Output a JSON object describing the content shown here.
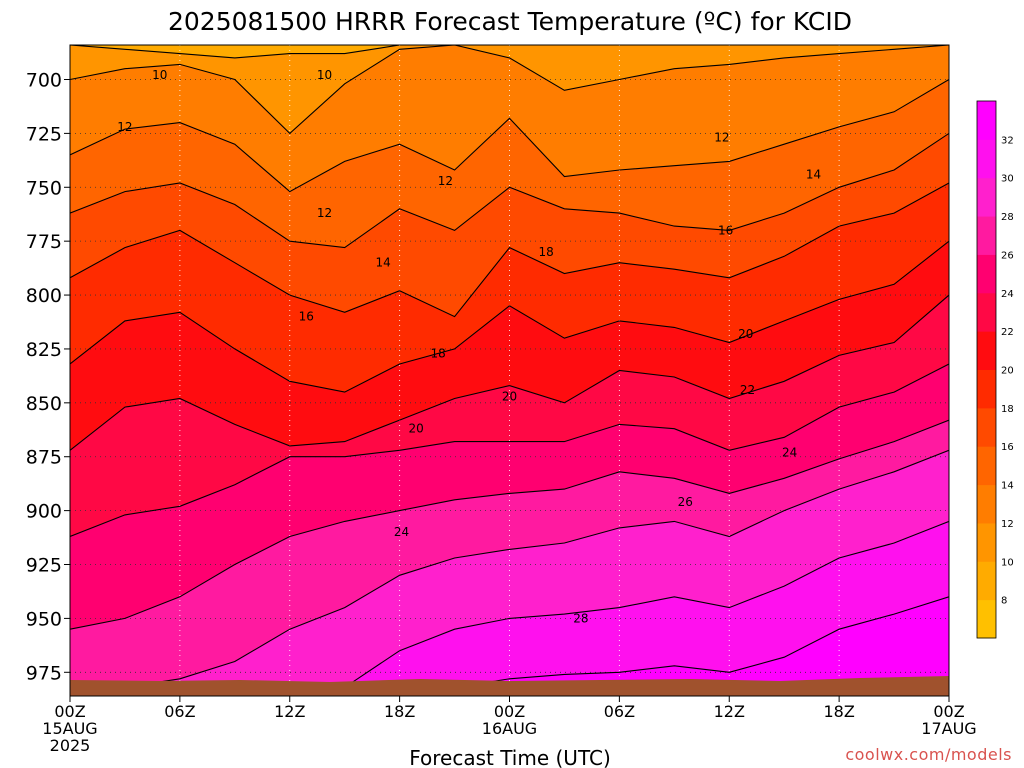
{
  "chart_data": {
    "type": "heatmap",
    "title": "2025081500 HRRR Forecast Temperature (ºC) for KCID",
    "xlabel": "Forecast Time (UTC)",
    "ylabel": "",
    "x_ticks": [
      {
        "hour": 0,
        "lines": [
          "00Z",
          "15AUG",
          "2025"
        ]
      },
      {
        "hour": 6,
        "lines": [
          "06Z"
        ]
      },
      {
        "hour": 12,
        "lines": [
          "12Z"
        ]
      },
      {
        "hour": 18,
        "lines": [
          "18Z"
        ]
      },
      {
        "hour": 24,
        "lines": [
          "00Z",
          "16AUG"
        ]
      },
      {
        "hour": 30,
        "lines": [
          "06Z"
        ]
      },
      {
        "hour": 36,
        "lines": [
          "12Z"
        ]
      },
      {
        "hour": 42,
        "lines": [
          "18Z"
        ]
      },
      {
        "hour": 48,
        "lines": [
          "00Z",
          "17AUG"
        ]
      }
    ],
    "xlim": [
      0,
      48
    ],
    "y_ticks": [
      700,
      725,
      750,
      775,
      800,
      825,
      850,
      875,
      900,
      925,
      950,
      975
    ],
    "ylim": [
      684,
      986
    ],
    "y_scale": "inverted pressure (hPa)",
    "colorbar": {
      "ticks": [
        8,
        10,
        12,
        14,
        16,
        18,
        20,
        22,
        24,
        26,
        28,
        30,
        32
      ],
      "range": [
        6,
        34
      ],
      "colors": [
        "#ffc000",
        "#ffab00",
        "#ff9500",
        "#ff7d00",
        "#ff6500",
        "#ff4a00",
        "#ff2b00",
        "#ff0c10",
        "#ff0845",
        "#ff0070",
        "#ff1aa0",
        "#ff20cd",
        "#ff10ee",
        "#ff00ff"
      ]
    },
    "contour_interval": 2,
    "hours": [
      0,
      3,
      6,
      9,
      12,
      15,
      18,
      21,
      24,
      27,
      30,
      33,
      36,
      39,
      42,
      45,
      48
    ],
    "contour_levels": [
      {
        "value": 10,
        "pressure": [
          684,
          686,
          688,
          690,
          688,
          688,
          684,
          684,
          684,
          684,
          684,
          684,
          684,
          684,
          684,
          684,
          684
        ]
      },
      {
        "value": 12,
        "pressure": [
          700,
          695,
          693,
          700,
          725,
          702,
          686,
          684,
          690,
          705,
          700,
          695,
          693,
          690,
          688,
          686,
          684
        ]
      },
      {
        "value": 14,
        "pressure": [
          735,
          723,
          720,
          730,
          752,
          738,
          730,
          742,
          718,
          745,
          742,
          740,
          738,
          730,
          722,
          715,
          700
        ]
      },
      {
        "value": 16,
        "pressure": [
          762,
          752,
          748,
          758,
          775,
          778,
          760,
          770,
          750,
          760,
          762,
          768,
          770,
          762,
          750,
          742,
          725
        ]
      },
      {
        "value": 18,
        "pressure": [
          792,
          778,
          770,
          785,
          800,
          808,
          798,
          810,
          778,
          790,
          785,
          788,
          792,
          782,
          768,
          762,
          748
        ]
      },
      {
        "value": 20,
        "pressure": [
          832,
          812,
          808,
          825,
          840,
          845,
          832,
          825,
          805,
          820,
          812,
          815,
          822,
          812,
          802,
          795,
          775
        ]
      },
      {
        "value": 22,
        "pressure": [
          872,
          852,
          848,
          860,
          870,
          868,
          858,
          848,
          842,
          850,
          835,
          838,
          848,
          840,
          828,
          822,
          800
        ]
      },
      {
        "value": 24,
        "pressure": [
          912,
          902,
          898,
          888,
          875,
          875,
          872,
          868,
          868,
          868,
          860,
          862,
          872,
          866,
          852,
          845,
          832
        ]
      },
      {
        "value": 26,
        "pressure": [
          955,
          950,
          940,
          925,
          912,
          905,
          900,
          895,
          892,
          890,
          882,
          885,
          892,
          885,
          876,
          868,
          858
        ]
      },
      {
        "value": 28,
        "pressure": [
          986,
          982,
          978,
          970,
          955,
          945,
          930,
          922,
          918,
          915,
          908,
          905,
          912,
          900,
          890,
          882,
          872
        ]
      },
      {
        "value": 30,
        "pressure": [
          986,
          986,
          986,
          986,
          986,
          982,
          965,
          955,
          950,
          948,
          945,
          940,
          945,
          935,
          922,
          915,
          905
        ]
      },
      {
        "value": 32,
        "pressure": [
          986,
          986,
          986,
          986,
          986,
          986,
          986,
          982,
          978,
          976,
          975,
          972,
          975,
          968,
          955,
          948,
          940
        ]
      }
    ],
    "contour_labels": [
      {
        "value": "10",
        "hour": 4.9,
        "pressure": 698
      },
      {
        "value": "10",
        "hour": 13.9,
        "pressure": 698
      },
      {
        "value": "12",
        "hour": 3.0,
        "pressure": 722
      },
      {
        "value": "12",
        "hour": 20.5,
        "pressure": 747
      },
      {
        "value": "12",
        "hour": 35.6,
        "pressure": 727
      },
      {
        "value": "12",
        "hour": 13.9,
        "pressure": 762
      },
      {
        "value": "14",
        "hour": 17.1,
        "pressure": 785
      },
      {
        "value": "14",
        "hour": 40.6,
        "pressure": 744
      },
      {
        "value": "16",
        "hour": 12.9,
        "pressure": 810
      },
      {
        "value": "16",
        "hour": 35.8,
        "pressure": 770
      },
      {
        "value": "18",
        "hour": 26.0,
        "pressure": 780
      },
      {
        "value": "18",
        "hour": 20.1,
        "pressure": 827
      },
      {
        "value": "20",
        "hour": 18.9,
        "pressure": 862
      },
      {
        "value": "20",
        "hour": 24.0,
        "pressure": 847
      },
      {
        "value": "20",
        "hour": 36.9,
        "pressure": 818
      },
      {
        "value": "22",
        "hour": 37.0,
        "pressure": 844
      },
      {
        "value": "24",
        "hour": 18.1,
        "pressure": 910
      },
      {
        "value": "24",
        "hour": 39.3,
        "pressure": 873
      },
      {
        "value": "26",
        "hour": 33.6,
        "pressure": 896
      },
      {
        "value": "28",
        "hour": 27.9,
        "pressure": 950
      }
    ]
  },
  "credit": "coolwx.com/models"
}
